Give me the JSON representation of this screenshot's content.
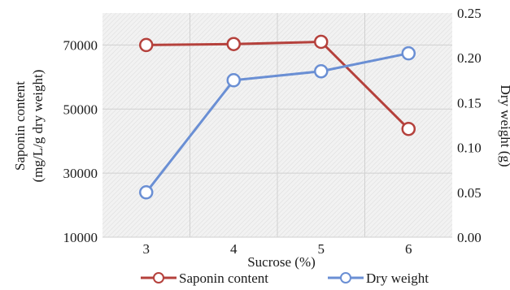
{
  "chart_data": {
    "type": "line",
    "categories": [
      "3",
      "4",
      "5",
      "6"
    ],
    "xlabel": "Sucrose (%)",
    "ylabel_left_line1": "Saponin content",
    "ylabel_left_line2": "(mg/L/g dry weight)",
    "ylabel_right": "Dry weight (g)",
    "yleft": {
      "ylim": [
        10000,
        80000
      ],
      "ticks": [
        "10000",
        "30000",
        "50000",
        "70000"
      ],
      "tick_values": [
        10000,
        30000,
        50000,
        70000
      ]
    },
    "yright": {
      "ylim": [
        0.0,
        0.25
      ],
      "ticks": [
        "0.00",
        "0.05",
        "0.10",
        "0.15",
        "0.20",
        "0.25"
      ],
      "tick_values": [
        0.0,
        0.05,
        0.1,
        0.15,
        0.2,
        0.25
      ]
    },
    "series": [
      {
        "name": "Saponin content",
        "axis": "left",
        "color": "#b5413c",
        "values": [
          70000,
          70300,
          71000,
          43800
        ]
      },
      {
        "name": "Dry weight",
        "axis": "right",
        "color": "#6a8fd4",
        "values": [
          0.05,
          0.175,
          0.185,
          0.205
        ]
      }
    ],
    "grid": true,
    "legend_placement": "bottom"
  }
}
